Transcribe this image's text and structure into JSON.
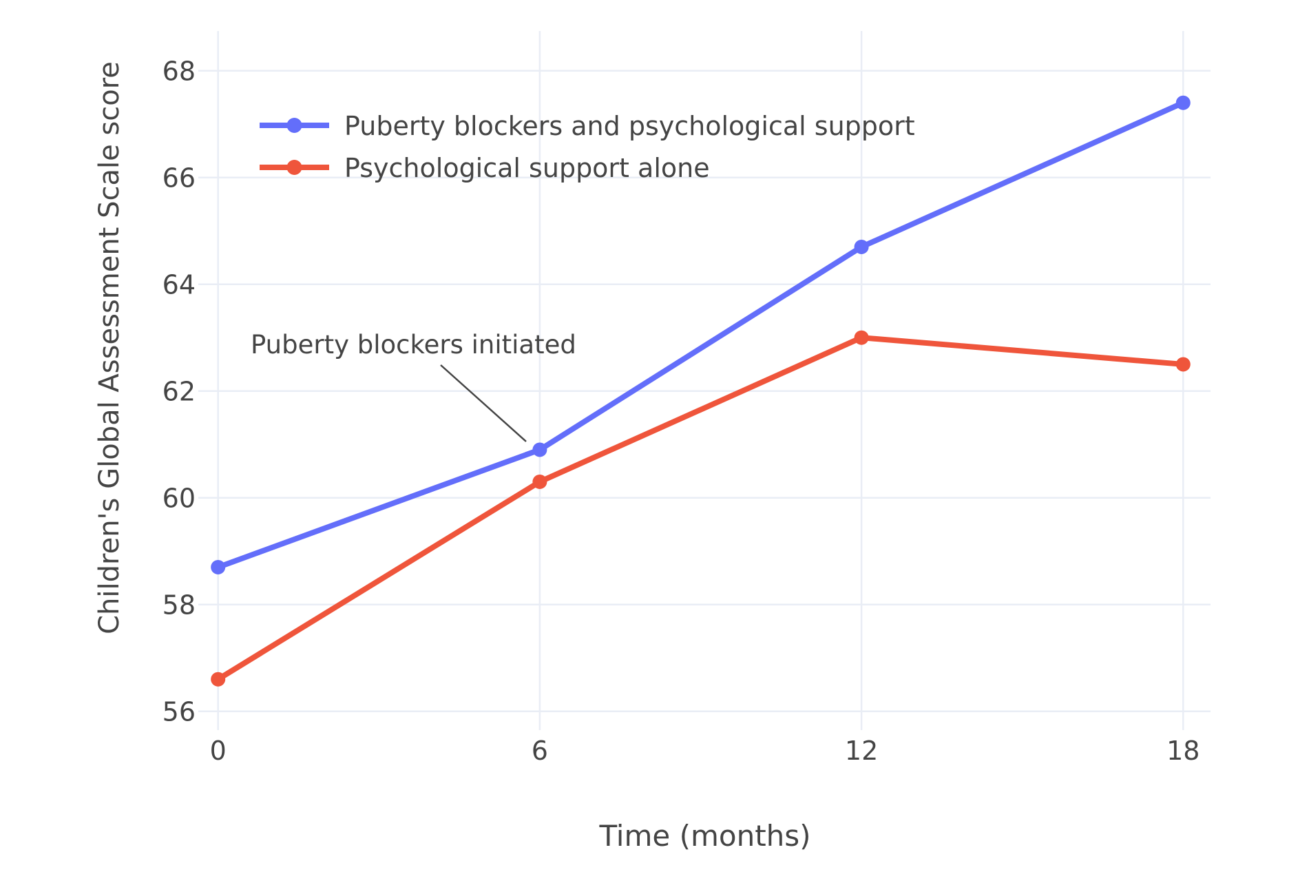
{
  "chart_data": {
    "type": "line",
    "x": [
      0,
      6,
      12,
      18
    ],
    "xticks": [
      "0",
      "6",
      "12",
      "18"
    ],
    "yticks": [
      "56",
      "58",
      "60",
      "62",
      "64",
      "66",
      "68"
    ],
    "series": [
      {
        "name": "Puberty blockers and psychological support",
        "color": "#636EFA",
        "values": [
          58.7,
          60.9,
          64.7,
          67.4
        ]
      },
      {
        "name": "Psychological support alone",
        "color": "#EF553B",
        "values": [
          56.6,
          60.3,
          63.0,
          62.5
        ]
      }
    ],
    "xlabel": "Time (months)",
    "ylabel": "Children's Global Assessment Scale score",
    "xlim": [
      -0.4,
      18.5
    ],
    "ylim": [
      55.6,
      68.75
    ],
    "grid": true,
    "legend_position": "top-left-inside",
    "background_color": "#FFFFFF",
    "grid_color": "#E9EDF5",
    "text_color": "#444444",
    "annotations": [
      {
        "text": "Puberty blockers initiated",
        "target_x": 6,
        "target_y": 60.9,
        "series": "Puberty blockers and psychological support"
      }
    ]
  }
}
